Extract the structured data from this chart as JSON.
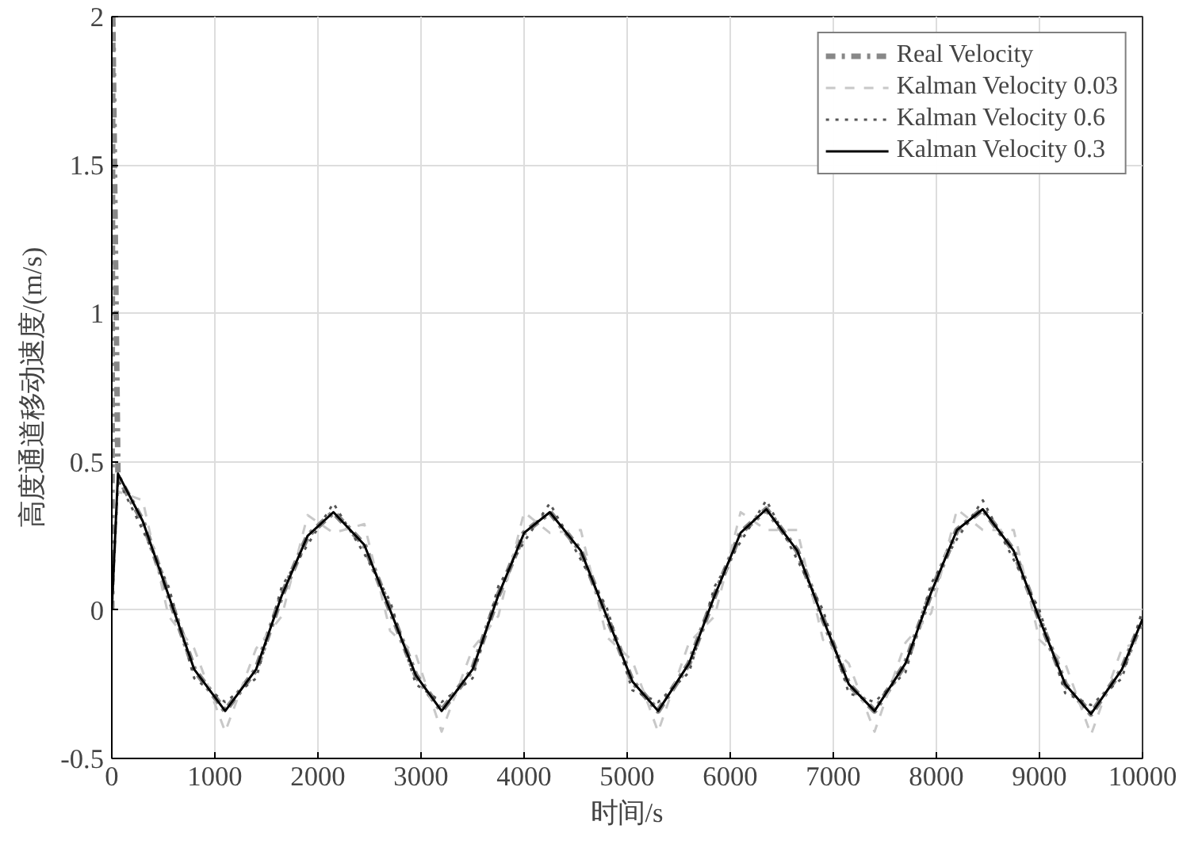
{
  "chart_data": {
    "type": "line",
    "xlabel": "时间/s",
    "ylabel": "高度通道移动速度/(m/s)",
    "xlim": [
      0,
      10000
    ],
    "xticks": [
      0,
      1000,
      2000,
      3000,
      4000,
      5000,
      6000,
      7000,
      8000,
      9000,
      10000
    ],
    "ylim": [
      -0.5,
      2
    ],
    "yticks": [
      -0.5,
      0,
      0.5,
      1,
      1.5,
      2
    ],
    "grid": true,
    "legend": "top right",
    "x": [
      0,
      60,
      300,
      550,
      800,
      1100,
      1400,
      1650,
      1900,
      2150,
      2450,
      2700,
      2950,
      3200,
      3500,
      3750,
      4000,
      4250,
      4550,
      4800,
      5050,
      5300,
      5600,
      5850,
      6100,
      6350,
      6650,
      6900,
      7150,
      7400,
      7700,
      7950,
      8200,
      8450,
      8750,
      9000,
      9250,
      9500,
      9800,
      10000
    ],
    "series": [
      {
        "name": "Real Velocity",
        "color": "#888888",
        "line_style": "dashdot",
        "x": [
          0,
          10,
          60,
          300,
          550,
          800,
          1100,
          1400,
          1650,
          1900,
          2150,
          2450,
          2700,
          2950,
          3200,
          3500,
          3750,
          4000,
          4250,
          4550,
          4800,
          5050,
          5300,
          5600,
          5850,
          6100,
          6350,
          6650,
          6900,
          7150,
          7400,
          7700,
          7950,
          8200,
          8450,
          8750,
          9000,
          9250,
          9500,
          9800,
          10000
        ],
        "values": [
          0,
          2.0,
          0.45,
          0.3,
          0.05,
          -0.2,
          -0.34,
          -0.2,
          0.05,
          0.25,
          0.33,
          0.22,
          0,
          -0.22,
          -0.34,
          -0.2,
          0.05,
          0.26,
          0.33,
          0.2,
          -0.02,
          -0.24,
          -0.34,
          -0.18,
          0.05,
          0.26,
          0.34,
          0.2,
          -0.03,
          -0.25,
          -0.34,
          -0.18,
          0.06,
          0.27,
          0.34,
          0.2,
          -0.03,
          -0.25,
          -0.35,
          -0.2,
          -0.03
        ]
      },
      {
        "name": "Kalman Velocity 0.03",
        "color": "#c8c8c8",
        "line_style": "dashed",
        "values": [
          0,
          0.4,
          0.37,
          -0.02,
          -0.13,
          -0.41,
          -0.13,
          -0.02,
          0.32,
          0.26,
          0.29,
          -0.07,
          -0.15,
          -0.41,
          -0.13,
          -0.02,
          0.33,
          0.26,
          0.27,
          -0.09,
          -0.17,
          -0.41,
          -0.11,
          -0.02,
          0.33,
          0.27,
          0.27,
          -0.1,
          -0.18,
          -0.41,
          -0.11,
          -0.01,
          0.34,
          0.27,
          0.27,
          -0.1,
          -0.18,
          -0.42,
          -0.13,
          -0.1
        ]
      },
      {
        "name": "Kalman Velocity 0.6",
        "color": "#555555",
        "line_style": "dotted",
        "values": [
          0,
          0.44,
          0.27,
          0.08,
          -0.23,
          -0.31,
          -0.23,
          0.08,
          0.22,
          0.36,
          0.19,
          0.03,
          -0.25,
          -0.31,
          -0.23,
          0.08,
          0.23,
          0.36,
          0.17,
          0.01,
          -0.27,
          -0.31,
          -0.21,
          0.08,
          0.23,
          0.37,
          0.17,
          0,
          -0.28,
          -0.31,
          -0.21,
          0.09,
          0.24,
          0.37,
          0.17,
          0,
          -0.28,
          -0.32,
          -0.23,
          0
        ]
      },
      {
        "name": "Kalman Velocity 0.3",
        "color": "#000000",
        "line_style": "solid",
        "values": [
          0,
          0.46,
          0.3,
          0.05,
          -0.2,
          -0.34,
          -0.2,
          0.05,
          0.25,
          0.33,
          0.22,
          0,
          -0.22,
          -0.34,
          -0.2,
          0.05,
          0.26,
          0.33,
          0.2,
          -0.02,
          -0.24,
          -0.34,
          -0.18,
          0.05,
          0.26,
          0.34,
          0.2,
          -0.03,
          -0.25,
          -0.34,
          -0.18,
          0.06,
          0.27,
          0.34,
          0.2,
          -0.03,
          -0.25,
          -0.35,
          -0.2,
          -0.03
        ]
      }
    ]
  }
}
